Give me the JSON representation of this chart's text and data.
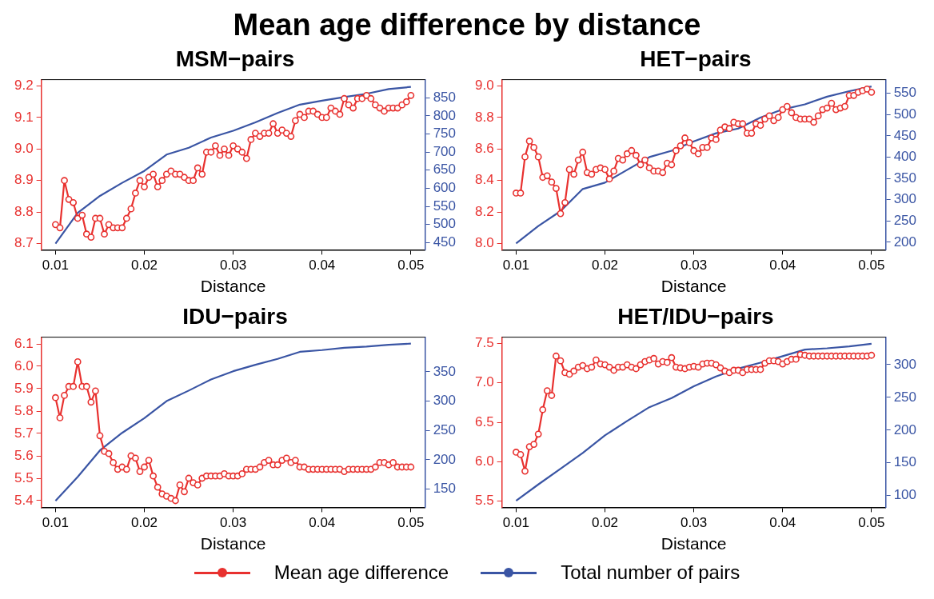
{
  "chart_data": [
    {
      "type": "other",
      "title": "Mean age difference by distance"
    },
    {
      "type": "line",
      "title": "MSM−pairs",
      "xlabel": "Distance",
      "legend": "bottom",
      "xlim": [
        0.0084,
        0.0516
      ],
      "xticks": [
        0.01,
        0.02,
        0.03,
        0.04,
        0.05
      ],
      "ylim": [
        8.68,
        9.22
      ],
      "yticks": [
        8.7,
        8.8,
        8.9,
        {
          "value": 9,
          "label": "9.0"
        },
        9.1,
        9.2
      ],
      "y2lim": [
        430,
        900
      ],
      "y2ticks": [
        450,
        500,
        550,
        600,
        650,
        700,
        750,
        800,
        850
      ],
      "x": [
        0.01,
        0.0105,
        0.011,
        0.0115,
        0.012,
        0.0125,
        0.013,
        0.0135,
        0.014,
        0.0145,
        0.015,
        0.0155,
        0.016,
        0.0165,
        0.017,
        0.0175,
        0.018,
        0.0185,
        0.019,
        0.0195,
        0.02,
        0.0205,
        0.021,
        0.0215,
        0.022,
        0.0225,
        0.023,
        0.0235,
        0.024,
        0.0245,
        0.025,
        0.0255,
        0.026,
        0.0265,
        0.027,
        0.0275,
        0.028,
        0.0285,
        0.029,
        0.0295,
        0.03,
        0.0305,
        0.031,
        0.0315,
        0.032,
        0.0325,
        0.033,
        0.0335,
        0.034,
        0.0345,
        0.035,
        0.0355,
        0.036,
        0.0365,
        0.037,
        0.0375,
        0.038,
        0.0385,
        0.039,
        0.0395,
        0.04,
        0.0405,
        0.041,
        0.0415,
        0.042,
        0.0425,
        0.043,
        0.0435,
        0.044,
        0.0445,
        0.045,
        0.0455,
        0.046,
        0.0465,
        0.047,
        0.0475,
        0.048,
        0.0485,
        0.049,
        0.0495,
        0.05
      ],
      "series": [
        {
          "name": "Mean age difference",
          "color": "#e8312f",
          "marker": "circle",
          "type": "line",
          "values": [
            8.76,
            8.75,
            8.9,
            8.84,
            8.83,
            8.78,
            8.79,
            8.73,
            8.72,
            8.78,
            8.78,
            8.73,
            8.76,
            8.75,
            8.75,
            8.75,
            8.78,
            8.81,
            8.86,
            8.9,
            8.88,
            8.91,
            8.92,
            8.88,
            8.9,
            8.92,
            8.93,
            8.92,
            8.92,
            8.91,
            8.9,
            8.9,
            8.94,
            8.92,
            8.99,
            8.99,
            9.01,
            8.98,
            9,
            8.98,
            9.01,
            9,
            8.99,
            8.97,
            9.03,
            9.05,
            9.04,
            9.05,
            9.05,
            9.08,
            9.05,
            9.06,
            9.05,
            9.04,
            9.09,
            9.11,
            9.1,
            9.12,
            9.12,
            9.11,
            9.1,
            9.1,
            9.13,
            9.12,
            9.11,
            9.16,
            9.14,
            9.13,
            9.16,
            9.16,
            9.17,
            9.16,
            9.14,
            9.13,
            9.12,
            9.13,
            9.13,
            9.13,
            9.14,
            9.15,
            9.17
          ]
        },
        {
          "name": "Total number of pairs",
          "color": "#3a55a4",
          "marker": "none",
          "type": "line",
          "axis": "y2",
          "x": [
            0.01,
            0.0125,
            0.015,
            0.0175,
            0.02,
            0.0225,
            0.025,
            0.0275,
            0.03,
            0.0325,
            0.035,
            0.0375,
            0.04,
            0.0425,
            0.045,
            0.0475,
            0.05
          ],
          "values": [
            447,
            532,
            579,
            615,
            648,
            693,
            712,
            740,
            759,
            782,
            808,
            831,
            842,
            852,
            861,
            874,
            880
          ]
        }
      ]
    },
    {
      "type": "line",
      "title": "HET−pairs",
      "xlabel": "Distance",
      "xlim": [
        0.0084,
        0.0516
      ],
      "xticks": [
        0.01,
        0.02,
        0.03,
        0.04,
        0.05
      ],
      "ylim": [
        7.96,
        9.04
      ],
      "yticks": [
        {
          "value": 8,
          "label": "8.0"
        },
        8.2,
        8.4,
        8.6,
        8.8,
        {
          "value": 9,
          "label": "9.0"
        }
      ],
      "y2lim": [
        182,
        582
      ],
      "y2ticks": [
        200,
        250,
        300,
        350,
        400,
        450,
        500,
        550
      ],
      "x": [
        0.01,
        0.0105,
        0.011,
        0.0115,
        0.012,
        0.0125,
        0.013,
        0.0135,
        0.014,
        0.0145,
        0.015,
        0.0155,
        0.016,
        0.0165,
        0.017,
        0.0175,
        0.018,
        0.0185,
        0.019,
        0.0195,
        0.02,
        0.0205,
        0.021,
        0.0215,
        0.022,
        0.0225,
        0.023,
        0.0235,
        0.024,
        0.0245,
        0.025,
        0.0255,
        0.026,
        0.0265,
        0.027,
        0.0275,
        0.028,
        0.0285,
        0.029,
        0.0295,
        0.03,
        0.0305,
        0.031,
        0.0315,
        0.032,
        0.0325,
        0.033,
        0.0335,
        0.034,
        0.0345,
        0.035,
        0.0355,
        0.036,
        0.0365,
        0.037,
        0.0375,
        0.038,
        0.0385,
        0.039,
        0.0395,
        0.04,
        0.0405,
        0.041,
        0.0415,
        0.042,
        0.0425,
        0.043,
        0.0435,
        0.044,
        0.0445,
        0.045,
        0.0455,
        0.046,
        0.0465,
        0.047,
        0.0475,
        0.048,
        0.0485,
        0.049,
        0.0495,
        0.05
      ],
      "series": [
        {
          "color": "#e8312f",
          "marker": "circle",
          "type": "line",
          "values": [
            8.32,
            8.32,
            8.55,
            8.65,
            8.61,
            8.55,
            8.42,
            8.43,
            8.39,
            8.35,
            8.19,
            8.26,
            8.47,
            8.44,
            8.53,
            8.58,
            8.45,
            8.44,
            8.47,
            8.48,
            8.47,
            8.41,
            8.46,
            8.54,
            8.53,
            8.57,
            8.59,
            8.56,
            8.5,
            8.53,
            8.48,
            8.46,
            8.46,
            8.45,
            8.51,
            8.5,
            8.59,
            8.62,
            8.67,
            8.64,
            8.59,
            8.57,
            8.61,
            8.61,
            8.67,
            8.66,
            8.72,
            8.74,
            8.73,
            8.77,
            8.76,
            8.76,
            8.7,
            8.7,
            8.76,
            8.75,
            8.79,
            8.81,
            8.78,
            8.8,
            8.85,
            8.87,
            8.83,
            8.8,
            8.79,
            8.79,
            8.79,
            8.77,
            8.81,
            8.85,
            8.86,
            8.89,
            8.85,
            8.86,
            8.87,
            8.94,
            8.94,
            8.96,
            8.97,
            8.98,
            8.96
          ]
        },
        {
          "color": "#3a55a4",
          "marker": "none",
          "type": "line",
          "axis": "y2",
          "x": [
            0.01,
            0.0125,
            0.015,
            0.0175,
            0.02,
            0.0225,
            0.025,
            0.0275,
            0.03,
            0.0325,
            0.035,
            0.0375,
            0.04,
            0.0425,
            0.045,
            0.0475,
            0.05
          ],
          "values": [
            197,
            238,
            273,
            325,
            340,
            370,
            400,
            415,
            437,
            456,
            467,
            493,
            512,
            524,
            542,
            555,
            566
          ]
        }
      ]
    },
    {
      "type": "line",
      "title": "IDU−pairs",
      "xlabel": "Distance",
      "xlim": [
        0.0084,
        0.0516
      ],
      "xticks": [
        0.01,
        0.02,
        0.03,
        0.04,
        0.05
      ],
      "ylim": [
        5.37,
        6.13
      ],
      "yticks": [
        5.4,
        5.5,
        5.6,
        5.7,
        5.8,
        5.9,
        {
          "value": 6,
          "label": "6.0"
        },
        6.1
      ],
      "y2lim": [
        119,
        409
      ],
      "y2ticks": [
        150,
        200,
        250,
        300,
        350
      ],
      "x": [
        0.01,
        0.0105,
        0.011,
        0.0115,
        0.012,
        0.0125,
        0.013,
        0.0135,
        0.014,
        0.0145,
        0.015,
        0.0155,
        0.016,
        0.0165,
        0.017,
        0.0175,
        0.018,
        0.0185,
        0.019,
        0.0195,
        0.02,
        0.0205,
        0.021,
        0.0215,
        0.022,
        0.0225,
        0.023,
        0.0235,
        0.024,
        0.0245,
        0.025,
        0.0255,
        0.026,
        0.0265,
        0.027,
        0.0275,
        0.028,
        0.0285,
        0.029,
        0.0295,
        0.03,
        0.0305,
        0.031,
        0.0315,
        0.032,
        0.0325,
        0.033,
        0.0335,
        0.034,
        0.0345,
        0.035,
        0.0355,
        0.036,
        0.0365,
        0.037,
        0.0375,
        0.038,
        0.0385,
        0.039,
        0.0395,
        0.04,
        0.0405,
        0.041,
        0.0415,
        0.042,
        0.0425,
        0.043,
        0.0435,
        0.044,
        0.0445,
        0.045,
        0.0455,
        0.046,
        0.0465,
        0.047,
        0.0475,
        0.048,
        0.0485,
        0.049,
        0.0495,
        0.05
      ],
      "series": [
        {
          "color": "#e8312f",
          "marker": "circle",
          "type": "line",
          "values": [
            5.86,
            5.77,
            5.87,
            5.91,
            5.91,
            6.02,
            5.91,
            5.91,
            5.84,
            5.89,
            5.69,
            5.62,
            5.61,
            5.57,
            5.54,
            5.55,
            5.54,
            5.6,
            5.59,
            5.53,
            5.55,
            5.58,
            5.51,
            5.46,
            5.43,
            5.42,
            5.41,
            5.4,
            5.47,
            5.44,
            5.5,
            5.48,
            5.47,
            5.5,
            5.51,
            5.51,
            5.51,
            5.51,
            5.52,
            5.51,
            5.51,
            5.51,
            5.52,
            5.54,
            5.54,
            5.54,
            5.55,
            5.57,
            5.58,
            5.56,
            5.56,
            5.58,
            5.59,
            5.57,
            5.58,
            5.55,
            5.55,
            5.54,
            5.54,
            5.54,
            5.54,
            5.54,
            5.54,
            5.54,
            5.54,
            5.53,
            5.54,
            5.54,
            5.54,
            5.54,
            5.54,
            5.54,
            5.55,
            5.57,
            5.57,
            5.56,
            5.57,
            5.55,
            5.55,
            5.55,
            5.55
          ]
        },
        {
          "color": "#3a55a4",
          "marker": "none",
          "type": "line",
          "axis": "y2",
          "x": [
            0.01,
            0.0125,
            0.015,
            0.0175,
            0.02,
            0.0225,
            0.025,
            0.0275,
            0.03,
            0.0325,
            0.035,
            0.0375,
            0.04,
            0.0425,
            0.045,
            0.0475,
            0.05
          ],
          "values": [
            130,
            171,
            216,
            246,
            271,
            300,
            318,
            337,
            351,
            362,
            372,
            384,
            387,
            391,
            393,
            396,
            398
          ]
        }
      ]
    },
    {
      "type": "line",
      "title": "HET/IDU−pairs",
      "xlabel": "Distance",
      "xlim": [
        0.0084,
        0.0516
      ],
      "xticks": [
        0.01,
        0.02,
        0.03,
        0.04,
        0.05
      ],
      "ylim": [
        5.42,
        7.58
      ],
      "yticks": [
        5.5,
        {
          "value": 6,
          "label": "6.0"
        },
        6.5,
        {
          "value": 7,
          "label": "7.0"
        },
        7.5
      ],
      "y2lim": [
        82,
        342
      ],
      "y2ticks": [
        100,
        150,
        200,
        250,
        300
      ],
      "x": [
        0.01,
        0.0105,
        0.011,
        0.0115,
        0.012,
        0.0125,
        0.013,
        0.0135,
        0.014,
        0.0145,
        0.015,
        0.0155,
        0.016,
        0.0165,
        0.017,
        0.0175,
        0.018,
        0.0185,
        0.019,
        0.0195,
        0.02,
        0.0205,
        0.021,
        0.0215,
        0.022,
        0.0225,
        0.023,
        0.0235,
        0.024,
        0.0245,
        0.025,
        0.0255,
        0.026,
        0.0265,
        0.027,
        0.0275,
        0.028,
        0.0285,
        0.029,
        0.0295,
        0.03,
        0.0305,
        0.031,
        0.0315,
        0.032,
        0.0325,
        0.033,
        0.0335,
        0.034,
        0.0345,
        0.035,
        0.0355,
        0.036,
        0.0365,
        0.037,
        0.0375,
        0.038,
        0.0385,
        0.039,
        0.0395,
        0.04,
        0.0405,
        0.041,
        0.0415,
        0.042,
        0.0425,
        0.043,
        0.0435,
        0.044,
        0.0445,
        0.045,
        0.0455,
        0.046,
        0.0465,
        0.047,
        0.0475,
        0.048,
        0.0485,
        0.049,
        0.0495,
        0.05
      ],
      "series": [
        {
          "color": "#e8312f",
          "marker": "circle",
          "type": "line",
          "values": [
            6.12,
            6.09,
            5.88,
            6.19,
            6.22,
            6.35,
            6.66,
            6.9,
            6.84,
            7.34,
            7.28,
            7.13,
            7.11,
            7.15,
            7.2,
            7.22,
            7.18,
            7.2,
            7.29,
            7.24,
            7.23,
            7.2,
            7.16,
            7.2,
            7.2,
            7.23,
            7.2,
            7.18,
            7.23,
            7.27,
            7.29,
            7.31,
            7.24,
            7.27,
            7.26,
            7.32,
            7.2,
            7.19,
            7.18,
            7.2,
            7.21,
            7.2,
            7.24,
            7.25,
            7.25,
            7.23,
            7.19,
            7.15,
            7.13,
            7.16,
            7.16,
            7.13,
            7.17,
            7.17,
            7.17,
            7.17,
            7.25,
            7.28,
            7.28,
            7.27,
            7.24,
            7.27,
            7.3,
            7.3,
            7.36,
            7.35,
            7.34,
            7.34,
            7.34,
            7.34,
            7.34,
            7.34,
            7.34,
            7.34,
            7.34,
            7.34,
            7.34,
            7.34,
            7.34,
            7.34,
            7.35
          ]
        },
        {
          "color": "#3a55a4",
          "marker": "none",
          "type": "line",
          "axis": "y2",
          "x": [
            0.01,
            0.0125,
            0.015,
            0.0175,
            0.02,
            0.0225,
            0.025,
            0.0275,
            0.03,
            0.0325,
            0.035,
            0.0375,
            0.04,
            0.0425,
            0.045,
            0.0475,
            0.05
          ],
          "values": [
            92,
            117,
            141,
            165,
            192,
            214,
            235,
            249,
            267,
            282,
            294,
            303,
            313,
            323,
            325,
            328,
            332
          ]
        }
      ]
    }
  ]
}
